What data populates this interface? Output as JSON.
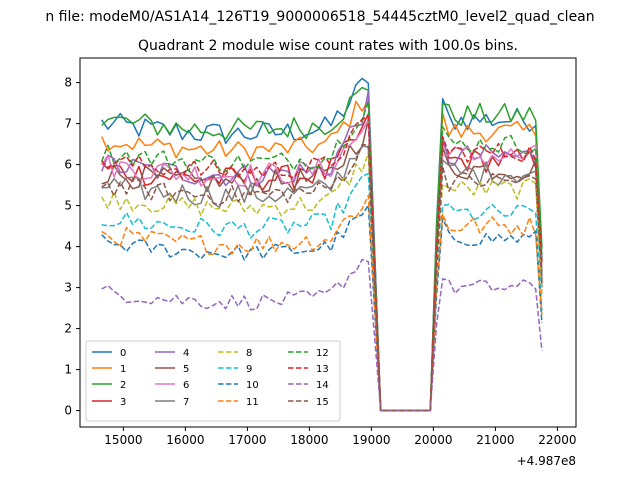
{
  "figure_title": "n file: modeM0/AS1A14_126T19_9000006518_54445cztM0_level2_quad_clean",
  "chart_data": {
    "type": "line",
    "title": "Quadrant 2 module wise count rates with 100.0s bins.",
    "xlabel": "",
    "ylabel": "",
    "x_offset_label": "+4.987e8",
    "xlim": [
      14300,
      22300
    ],
    "ylim": [
      -0.4,
      8.6
    ],
    "xticks": [
      15000,
      16000,
      17000,
      18000,
      19000,
      20000,
      21000,
      22000
    ],
    "yticks": [
      0,
      1,
      2,
      3,
      4,
      5,
      6,
      7,
      8
    ],
    "grid": false,
    "legend_position": "lower-left",
    "legend_columns": 4,
    "seg1": {
      "start": 14650,
      "step": 100,
      "count": 44
    },
    "gap": {
      "drop": 19150,
      "zero_end": 19950
    },
    "seg2": {
      "start": 20050,
      "step": 100,
      "count": 18
    },
    "series": [
      {
        "name": "0",
        "color": "#1f77b4",
        "dash": "solid",
        "base": 7.0,
        "amp": 0.3,
        "peak": 8.1,
        "seg2": 7.1
      },
      {
        "name": "1",
        "color": "#ff7f0e",
        "dash": "solid",
        "base": 6.6,
        "amp": 0.25,
        "peak": 7.7,
        "seg2": 6.8
      },
      {
        "name": "2",
        "color": "#2ca02c",
        "dash": "solid",
        "base": 7.1,
        "amp": 0.3,
        "peak": 7.9,
        "seg2": 7.2
      },
      {
        "name": "3",
        "color": "#d62728",
        "dash": "solid",
        "base": 5.9,
        "amp": 0.3,
        "peak": 7.0,
        "seg2": 6.1
      },
      {
        "name": "4",
        "color": "#9467bd",
        "dash": "solid",
        "base": 6.0,
        "amp": 0.3,
        "peak": 7.5,
        "seg2": 6.2
      },
      {
        "name": "5",
        "color": "#8c564b",
        "dash": "solid",
        "base": 5.8,
        "amp": 0.3,
        "peak": 6.9,
        "seg2": 5.9
      },
      {
        "name": "6",
        "color": "#e377c2",
        "dash": "solid",
        "base": 6.0,
        "amp": 0.3,
        "peak": 7.0,
        "seg2": 6.2
      },
      {
        "name": "7",
        "color": "#7f7f7f",
        "dash": "solid",
        "base": 5.5,
        "amp": 0.3,
        "peak": 6.7,
        "seg2": 5.8
      },
      {
        "name": "8",
        "color": "#bcbd22",
        "dash": "dashed",
        "base": 5.2,
        "amp": 0.25,
        "peak": 6.2,
        "seg2": 5.4
      },
      {
        "name": "9",
        "color": "#17becf",
        "dash": "dashed",
        "base": 4.7,
        "amp": 0.25,
        "peak": 5.7,
        "seg2": 4.8
      },
      {
        "name": "10",
        "color": "#1f77b4",
        "dash": "dashed",
        "base": 4.1,
        "amp": 0.2,
        "peak": 4.9,
        "seg2": 4.2
      },
      {
        "name": "11",
        "color": "#ff7f0e",
        "dash": "dashed",
        "base": 4.3,
        "amp": 0.25,
        "peak": 5.2,
        "seg2": 4.5
      },
      {
        "name": "12",
        "color": "#2ca02c",
        "dash": "dashed",
        "base": 6.3,
        "amp": 0.25,
        "peak": 7.5,
        "seg2": 6.5
      },
      {
        "name": "13",
        "color": "#d62728",
        "dash": "dashed",
        "base": 6.1,
        "amp": 0.25,
        "peak": 7.1,
        "seg2": 6.3
      },
      {
        "name": "14",
        "color": "#9467bd",
        "dash": "dashed",
        "base": 2.9,
        "amp": 0.2,
        "peak": 3.8,
        "seg2": 3.0
      },
      {
        "name": "15",
        "color": "#8c564b",
        "dash": "dashed",
        "base": 5.5,
        "amp": 0.25,
        "peak": 6.5,
        "seg2": 5.6
      }
    ]
  }
}
